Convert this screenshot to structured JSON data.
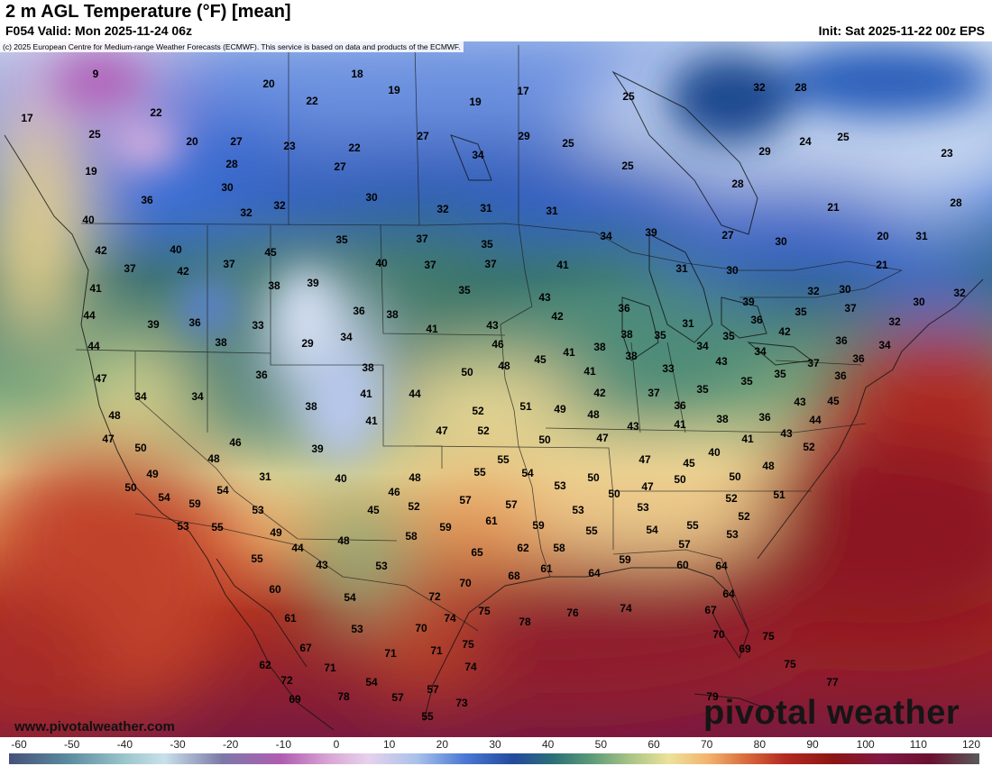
{
  "header": {
    "title": "2 m AGL Temperature (°F) [mean]",
    "valid": "F054 Valid: Mon 2025-11-24 06z",
    "init": "Init: Sat 2025-11-22 00z EPS",
    "copyright": "(c) 2025 European Centre for Medium-range Weather Forecasts (ECMWF). This service is based on data and products of the ECMWF."
  },
  "branding": {
    "watermark": "pivotal weather",
    "website": "www.pivotalweather.com"
  },
  "colorbar": {
    "ticks": [
      "-60",
      "-50",
      "-40",
      "-30",
      "-20",
      "-10",
      "0",
      "10",
      "20",
      "30",
      "40",
      "50",
      "60",
      "70",
      "80",
      "90",
      "100",
      "110",
      "120"
    ]
  },
  "temperatures": [
    [
      "9",
      106,
      82
    ],
    [
      "18",
      396,
      82
    ],
    [
      "20",
      298,
      93
    ],
    [
      "19",
      437,
      100
    ],
    [
      "17",
      580,
      101
    ],
    [
      "22",
      346,
      112
    ],
    [
      "19",
      527,
      113
    ],
    [
      "25",
      697,
      107
    ],
    [
      "32",
      842,
      97
    ],
    [
      "28",
      888,
      97
    ],
    [
      "17",
      30,
      131
    ],
    [
      "22",
      173,
      125
    ],
    [
      "25",
      105,
      149
    ],
    [
      "20",
      213,
      157
    ],
    [
      "27",
      262,
      157
    ],
    [
      "23",
      321,
      162
    ],
    [
      "22",
      393,
      164
    ],
    [
      "27",
      469,
      151
    ],
    [
      "29",
      581,
      151
    ],
    [
      "25",
      630,
      159
    ],
    [
      "29",
      848,
      168
    ],
    [
      "24",
      893,
      157
    ],
    [
      "25",
      935,
      152
    ],
    [
      "23",
      1050,
      170
    ],
    [
      "19",
      101,
      190
    ],
    [
      "28",
      257,
      182
    ],
    [
      "27",
      377,
      185
    ],
    [
      "34",
      530,
      172
    ],
    [
      "25",
      696,
      184
    ],
    [
      "28",
      818,
      204
    ],
    [
      "30",
      252,
      208
    ],
    [
      "30",
      412,
      219
    ],
    [
      "36",
      163,
      222
    ],
    [
      "32",
      273,
      236
    ],
    [
      "32",
      310,
      228
    ],
    [
      "32",
      491,
      232
    ],
    [
      "31",
      539,
      231
    ],
    [
      "31",
      612,
      234
    ],
    [
      "21",
      924,
      230
    ],
    [
      "28",
      1060,
      225
    ],
    [
      "40",
      98,
      244
    ],
    [
      "42",
      112,
      278
    ],
    [
      "40",
      195,
      277
    ],
    [
      "45",
      300,
      280
    ],
    [
      "35",
      379,
      266
    ],
    [
      "37",
      468,
      265
    ],
    [
      "35",
      540,
      271
    ],
    [
      "34",
      672,
      262
    ],
    [
      "39",
      722,
      258
    ],
    [
      "27",
      807,
      261
    ],
    [
      "30",
      866,
      268
    ],
    [
      "20",
      979,
      262
    ],
    [
      "31",
      1022,
      262
    ],
    [
      "21",
      978,
      294
    ],
    [
      "37",
      144,
      298
    ],
    [
      "42",
      203,
      301
    ],
    [
      "37",
      254,
      293
    ],
    [
      "40",
      423,
      292
    ],
    [
      "37",
      477,
      294
    ],
    [
      "37",
      544,
      293
    ],
    [
      "41",
      624,
      294
    ],
    [
      "31",
      756,
      298
    ],
    [
      "30",
      812,
      300
    ],
    [
      "41",
      106,
      320
    ],
    [
      "38",
      304,
      317
    ],
    [
      "39",
      347,
      314
    ],
    [
      "35",
      515,
      322
    ],
    [
      "43",
      604,
      330
    ],
    [
      "32",
      902,
      323
    ],
    [
      "30",
      937,
      321
    ],
    [
      "30",
      1019,
      335
    ],
    [
      "32",
      1064,
      325
    ],
    [
      "44",
      99,
      350
    ],
    [
      "39",
      170,
      360
    ],
    [
      "36",
      216,
      358
    ],
    [
      "33",
      286,
      361
    ],
    [
      "36",
      398,
      345
    ],
    [
      "38",
      435,
      349
    ],
    [
      "42",
      618,
      351
    ],
    [
      "36",
      692,
      342
    ],
    [
      "39",
      830,
      335
    ],
    [
      "35",
      888,
      346
    ],
    [
      "37",
      943,
      342
    ],
    [
      "32",
      992,
      357
    ],
    [
      "41",
      479,
      365
    ],
    [
      "43",
      546,
      361
    ],
    [
      "38",
      695,
      371
    ],
    [
      "31",
      763,
      359
    ],
    [
      "35",
      732,
      372
    ],
    [
      "36",
      839,
      355
    ],
    [
      "42",
      870,
      368
    ],
    [
      "44",
      104,
      384
    ],
    [
      "38",
      245,
      380
    ],
    [
      "29",
      341,
      381
    ],
    [
      "34",
      384,
      374
    ],
    [
      "46",
      552,
      382
    ],
    [
      "41",
      631,
      391
    ],
    [
      "38",
      665,
      385
    ],
    [
      "38",
      700,
      395
    ],
    [
      "34",
      779,
      384
    ],
    [
      "35",
      808,
      373
    ],
    [
      "34",
      843,
      390
    ],
    [
      "36",
      933,
      378
    ],
    [
      "34",
      981,
      383
    ],
    [
      "47",
      112,
      420
    ],
    [
      "36",
      290,
      416
    ],
    [
      "38",
      408,
      408
    ],
    [
      "50",
      518,
      413
    ],
    [
      "48",
      559,
      406
    ],
    [
      "45",
      599,
      399
    ],
    [
      "41",
      654,
      412
    ],
    [
      "33",
      741,
      409
    ],
    [
      "43",
      800,
      401
    ],
    [
      "35",
      865,
      415
    ],
    [
      "37",
      902,
      403
    ],
    [
      "36",
      952,
      398
    ],
    [
      "36",
      932,
      417
    ],
    [
      "34",
      156,
      440
    ],
    [
      "34",
      219,
      440
    ],
    [
      "41",
      406,
      437
    ],
    [
      "44",
      460,
      437
    ],
    [
      "42",
      665,
      436
    ],
    [
      "37",
      725,
      436
    ],
    [
      "35",
      779,
      432
    ],
    [
      "35",
      828,
      423
    ],
    [
      "45",
      924,
      445
    ],
    [
      "48",
      127,
      461
    ],
    [
      "38",
      345,
      451
    ],
    [
      "41",
      412,
      467
    ],
    [
      "52",
      530,
      456
    ],
    [
      "51",
      583,
      451
    ],
    [
      "49",
      621,
      454
    ],
    [
      "48",
      658,
      460
    ],
    [
      "36",
      754,
      450
    ],
    [
      "38",
      801,
      465
    ],
    [
      "36",
      848,
      463
    ],
    [
      "43",
      887,
      446
    ],
    [
      "44",
      904,
      466
    ],
    [
      "47",
      120,
      487
    ],
    [
      "46",
      261,
      491
    ],
    [
      "47",
      490,
      478
    ],
    [
      "52",
      536,
      478
    ],
    [
      "50",
      604,
      488
    ],
    [
      "43",
      702,
      473
    ],
    [
      "41",
      754,
      471
    ],
    [
      "47",
      668,
      486
    ],
    [
      "41",
      829,
      487
    ],
    [
      "43",
      872,
      481
    ],
    [
      "50",
      156,
      497
    ],
    [
      "48",
      237,
      509
    ],
    [
      "39",
      352,
      498
    ],
    [
      "40",
      792,
      502
    ],
    [
      "52",
      897,
      496
    ],
    [
      "49",
      169,
      526
    ],
    [
      "54",
      247,
      544
    ],
    [
      "31",
      294,
      529
    ],
    [
      "40",
      378,
      531
    ],
    [
      "48",
      460,
      530
    ],
    [
      "55",
      532,
      524
    ],
    [
      "55",
      558,
      510
    ],
    [
      "54",
      585,
      525
    ],
    [
      "47",
      715,
      510
    ],
    [
      "45",
      764,
      514
    ],
    [
      "48",
      852,
      517
    ],
    [
      "50",
      145,
      541
    ],
    [
      "54",
      182,
      552
    ],
    [
      "59",
      216,
      559
    ],
    [
      "46",
      437,
      546
    ],
    [
      "53",
      621,
      539
    ],
    [
      "50",
      658,
      530
    ],
    [
      "47",
      718,
      540
    ],
    [
      "50",
      681,
      548
    ],
    [
      "50",
      754,
      532
    ],
    [
      "50",
      815,
      529
    ],
    [
      "51",
      864,
      549
    ],
    [
      "53",
      203,
      584
    ],
    [
      "55",
      241,
      585
    ],
    [
      "53",
      286,
      566
    ],
    [
      "52",
      459,
      562
    ],
    [
      "57",
      516,
      555
    ],
    [
      "57",
      567,
      560
    ],
    [
      "53",
      713,
      563
    ],
    [
      "52",
      811,
      553
    ],
    [
      "52",
      825,
      573
    ],
    [
      "45",
      414,
      566
    ],
    [
      "61",
      545,
      578
    ],
    [
      "59",
      597,
      583
    ],
    [
      "53",
      641,
      566
    ],
    [
      "55",
      656,
      589
    ],
    [
      "54",
      723,
      588
    ],
    [
      "55",
      768,
      583
    ],
    [
      "53",
      812,
      593
    ],
    [
      "49",
      306,
      591
    ],
    [
      "59",
      494,
      585
    ],
    [
      "58",
      456,
      595
    ],
    [
      "48",
      381,
      600
    ],
    [
      "57",
      759,
      604
    ],
    [
      "55",
      285,
      620
    ],
    [
      "44",
      330,
      608
    ],
    [
      "65",
      529,
      613
    ],
    [
      "62",
      580,
      608
    ],
    [
      "58",
      620,
      608
    ],
    [
      "43",
      357,
      627
    ],
    [
      "53",
      423,
      628
    ],
    [
      "61",
      606,
      631
    ],
    [
      "59",
      693,
      621
    ],
    [
      "60",
      757,
      627
    ],
    [
      "64",
      800,
      628
    ],
    [
      "60",
      305,
      654
    ],
    [
      "70",
      516,
      647
    ],
    [
      "68",
      570,
      639
    ],
    [
      "64",
      659,
      636
    ],
    [
      "54",
      388,
      663
    ],
    [
      "72",
      482,
      662
    ],
    [
      "78",
      582,
      690
    ],
    [
      "76",
      635,
      680
    ],
    [
      "74",
      694,
      675
    ],
    [
      "64",
      808,
      659
    ],
    [
      "67",
      788,
      677
    ],
    [
      "61",
      322,
      686
    ],
    [
      "74",
      499,
      686
    ],
    [
      "75",
      537,
      678
    ],
    [
      "70",
      467,
      697
    ],
    [
      "53",
      396,
      698
    ],
    [
      "70",
      797,
      704
    ],
    [
      "69",
      826,
      720
    ],
    [
      "75",
      852,
      706
    ],
    [
      "67",
      339,
      719
    ],
    [
      "71",
      433,
      725
    ],
    [
      "71",
      484,
      722
    ],
    [
      "75",
      519,
      715
    ],
    [
      "62",
      294,
      738
    ],
    [
      "72",
      318,
      755
    ],
    [
      "71",
      366,
      741
    ],
    [
      "74",
      522,
      740
    ],
    [
      "75",
      876,
      737
    ],
    [
      "54",
      412,
      757
    ],
    [
      "57",
      480,
      765
    ],
    [
      "77",
      923,
      757
    ],
    [
      "69",
      327,
      776
    ],
    [
      "78",
      381,
      773
    ],
    [
      "57",
      441,
      774
    ],
    [
      "73",
      512,
      780
    ],
    [
      "79",
      790,
      773
    ],
    [
      "55",
      474,
      795
    ]
  ]
}
